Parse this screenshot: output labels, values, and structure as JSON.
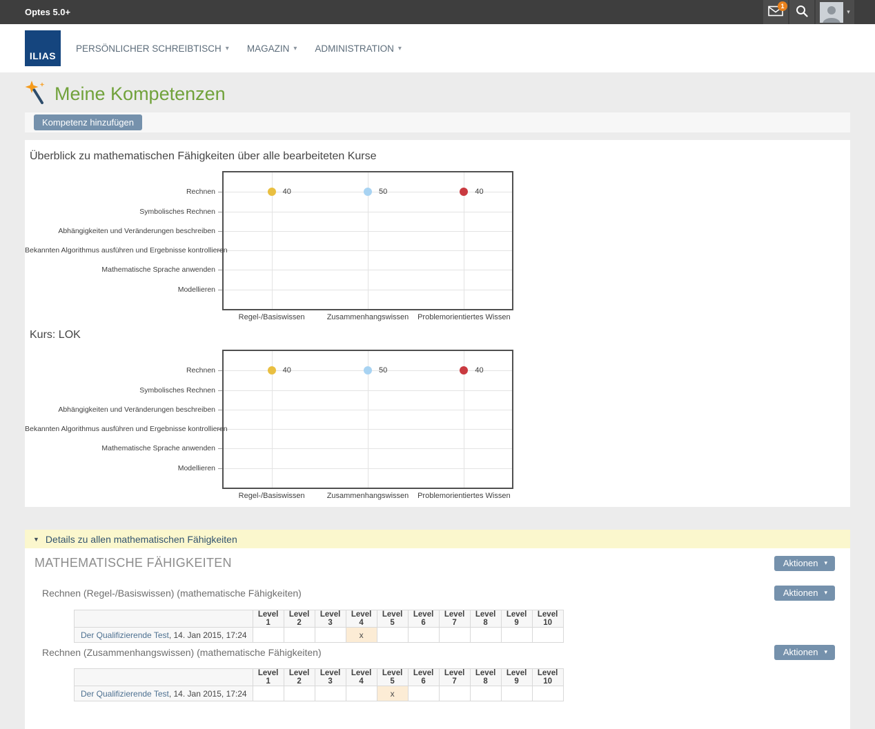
{
  "topbar": {
    "brand": "Optes 5.0+",
    "mail_badge": "1"
  },
  "nav": {
    "logo": "ILIAS",
    "items": [
      "PERSÖNLICHER SCHREIBTISCH",
      "MAGAZIN",
      "ADMINISTRATION"
    ]
  },
  "page": {
    "title": "Meine Kompetenzen",
    "add_competence_button": "Kompetenz hinzufügen"
  },
  "accordion": {
    "label": "Details zu allen mathematischen Fähigkeiten"
  },
  "skills_section": {
    "title": "MATHEMATISCHE FÄHIGKEITEN",
    "actions_button": "Aktionen",
    "subsections": [
      {
        "title": "Rechnen (Regel-/Basiswissen) (mathematische Fähigkeiten)",
        "table": {
          "levels": [
            "Level 1",
            "Level 2",
            "Level 3",
            "Level 4",
            "Level 5",
            "Level 6",
            "Level 7",
            "Level 8",
            "Level 9",
            "Level 10"
          ],
          "rows": [
            {
              "link": "Der Qualifizierende Test",
              "suffix": ", 14. Jan 2015, 17:24",
              "marked_level": "Level 4",
              "mark": "x"
            }
          ]
        }
      },
      {
        "title": "Rechnen (Zusammenhangswissen) (mathematische Fähigkeiten)",
        "table": {
          "levels": [
            "Level 1",
            "Level 2",
            "Level 3",
            "Level 4",
            "Level 5",
            "Level 6",
            "Level 7",
            "Level 8",
            "Level 9",
            "Level 10"
          ],
          "rows": [
            {
              "link": "Der Qualifizierende Test",
              "suffix": ", 14. Jan 2015, 17:24",
              "marked_level": "Level 5",
              "mark": "x"
            }
          ]
        }
      }
    ]
  },
  "chart_data": [
    {
      "type": "scatter",
      "title": "Überblick zu mathematischen Fähigkeiten über alle bearbeiteten Kurse",
      "x_categories": [
        "Regel-/Basiswissen",
        "Zusammenhangswissen",
        "Problemorientiertes Wissen"
      ],
      "y_categories": [
        "Rechnen",
        "Symbolisches Rechnen",
        "Abhängigkeiten und Veränderungen beschreiben",
        "Bekannten Algorithmus ausführen und Ergebnisse kontrollieren",
        "Mathematische Sprache anwenden",
        "Modellieren"
      ],
      "points": [
        {
          "x": "Regel-/Basiswissen",
          "y": "Rechnen",
          "value": 40,
          "color": "#e9bf41"
        },
        {
          "x": "Zusammenhangswissen",
          "y": "Rechnen",
          "value": 50,
          "color": "#a8d3f2"
        },
        {
          "x": "Problemorientiertes Wissen",
          "y": "Rechnen",
          "value": 40,
          "color": "#c93a40"
        }
      ],
      "grid": true,
      "value_labels": true,
      "legend": "none"
    },
    {
      "type": "scatter",
      "title": "Kurs: LOK",
      "x_categories": [
        "Regel-/Basiswissen",
        "Zusammenhangswissen",
        "Problemorientiertes Wissen"
      ],
      "y_categories": [
        "Rechnen",
        "Symbolisches Rechnen",
        "Abhängigkeiten und Veränderungen beschreiben",
        "Bekannten Algorithmus ausführen und Ergebnisse kontrollieren",
        "Mathematische Sprache anwenden",
        "Modellieren"
      ],
      "points": [
        {
          "x": "Regel-/Basiswissen",
          "y": "Rechnen",
          "value": 40,
          "color": "#e9bf41"
        },
        {
          "x": "Zusammenhangswissen",
          "y": "Rechnen",
          "value": 50,
          "color": "#a8d3f2"
        },
        {
          "x": "Problemorientiertes Wissen",
          "y": "Rechnen",
          "value": 40,
          "color": "#c93a40"
        }
      ],
      "grid": true,
      "value_labels": true,
      "legend": "none"
    }
  ],
  "colors": {
    "accent_green": "#71a23b",
    "button_blue": "#7591ac",
    "badge_orange": "#e8811d",
    "accordion_yellow": "#fbf7cd",
    "marked_cell": "#fcecd5",
    "link_blue": "#4e7191",
    "topbar_gray": "#3e3e3e",
    "logo_navy": "#15457e"
  }
}
